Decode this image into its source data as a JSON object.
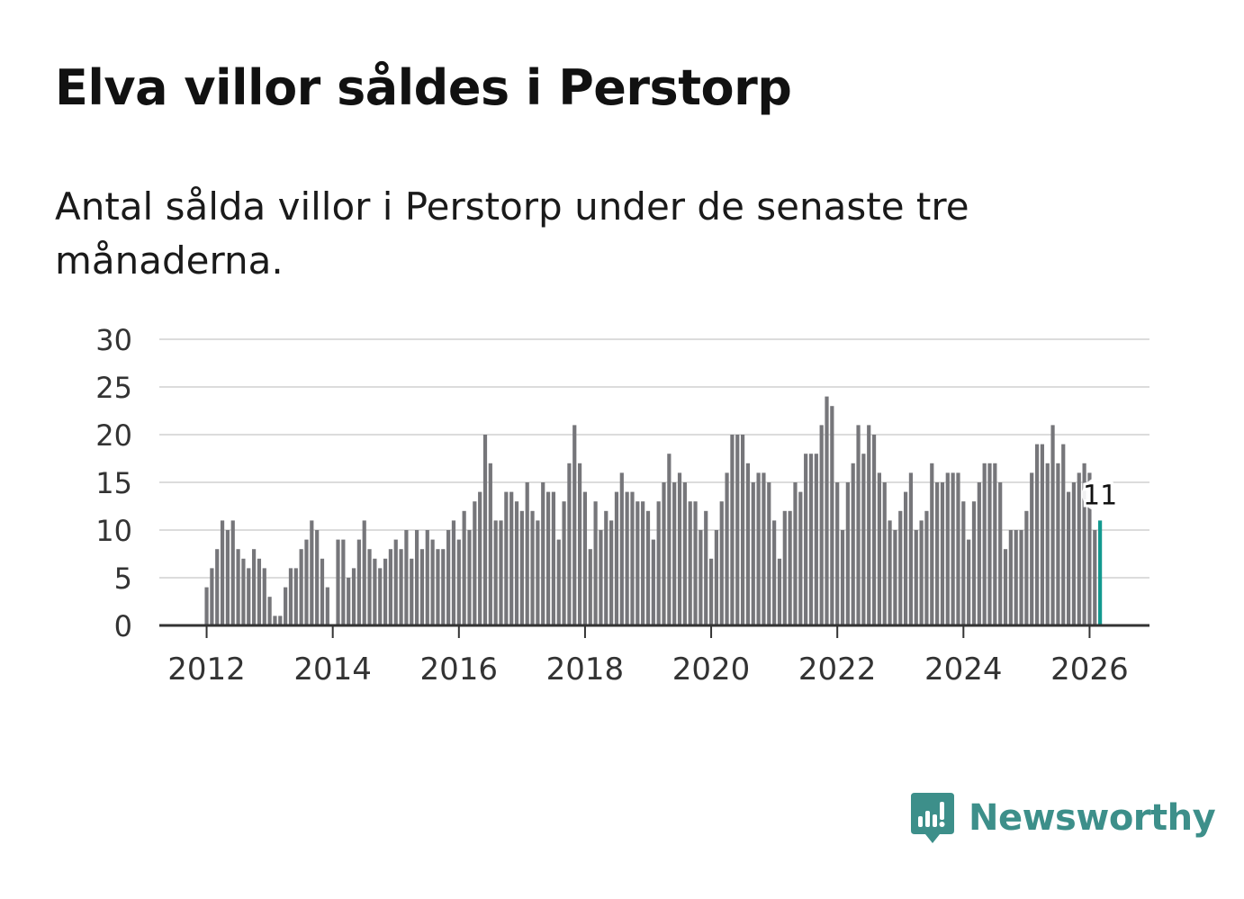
{
  "title": "Elva villor såldes i Perstorp",
  "subtitle": "Antal sålda villor i Perstorp under de senaste tre månaderna.",
  "brand": {
    "name": "Newsworthy",
    "color": "#3d8f8a",
    "icon": "newsworthy-logo-icon"
  },
  "colors": {
    "bar": "#76767a",
    "highlight": "#13998f",
    "grid": "#dcdcdc",
    "axis": "#333333"
  },
  "chart_data": {
    "type": "bar",
    "title": "Elva villor såldes i Perstorp",
    "xlabel": "",
    "ylabel": "",
    "ylim": [
      0,
      30
    ],
    "yticks": [
      0,
      5,
      10,
      15,
      20,
      25,
      30
    ],
    "xticks": [
      {
        "label": "2012",
        "x": 2012
      },
      {
        "label": "2014",
        "x": 2014
      },
      {
        "label": "2016",
        "x": 2016
      },
      {
        "label": "2018",
        "x": 2018
      },
      {
        "label": "2020",
        "x": 2020
      },
      {
        "label": "2022",
        "x": 2022
      },
      {
        "label": "2024",
        "x": 2024
      },
      {
        "label": "2026",
        "x": 2026
      }
    ],
    "x_start": 2011.25,
    "x_end": 2026.95,
    "start": {
      "year": 2012,
      "month": 1
    },
    "period": "monthly",
    "values": [
      4,
      6,
      8,
      11,
      10,
      11,
      8,
      7,
      6,
      8,
      7,
      6,
      3,
      1,
      1,
      4,
      6,
      6,
      8,
      9,
      11,
      10,
      7,
      4,
      0,
      9,
      9,
      5,
      6,
      9,
      11,
      8,
      7,
      6,
      7,
      8,
      9,
      8,
      10,
      7,
      10,
      8,
      10,
      9,
      8,
      8,
      10,
      11,
      9,
      12,
      10,
      13,
      14,
      20,
      17,
      11,
      11,
      14,
      14,
      13,
      12,
      15,
      12,
      11,
      15,
      14,
      14,
      9,
      13,
      17,
      21,
      17,
      14,
      8,
      13,
      10,
      12,
      11,
      14,
      16,
      14,
      14,
      13,
      13,
      12,
      9,
      13,
      15,
      18,
      15,
      16,
      15,
      13,
      13,
      10,
      12,
      7,
      10,
      13,
      16,
      20,
      20,
      20,
      17,
      15,
      16,
      16,
      15,
      11,
      7,
      12,
      12,
      15,
      14,
      18,
      18,
      18,
      21,
      24,
      23,
      15,
      10,
      15,
      17,
      21,
      18,
      21,
      20,
      16,
      15,
      11,
      10,
      12,
      14,
      16,
      10,
      11,
      12,
      17,
      15,
      15,
      16,
      16,
      16,
      13,
      9,
      13,
      15,
      17,
      17,
      17,
      15,
      8,
      10,
      10,
      10,
      12,
      16,
      19,
      19,
      17,
      21,
      17,
      19,
      14,
      15,
      16,
      17,
      16,
      10,
      11
    ],
    "highlight_index": 170,
    "annotation": {
      "label": "11",
      "index": 170,
      "value": 11
    }
  }
}
